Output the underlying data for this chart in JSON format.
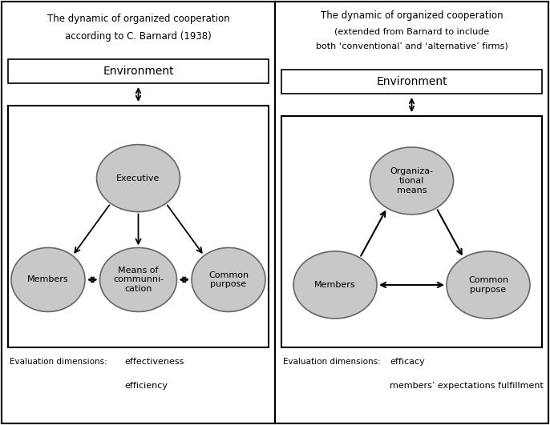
{
  "left_title_line1": "The dynamic of organized cooperation",
  "left_title_line2": "according to C. Barnard (1938)",
  "right_title_line1": "The dynamic of organized cooperation",
  "right_title_line2": "(extended from Barnard to include",
  "right_title_line3": "both ‘conventional’ and ‘alternative’ firms)",
  "env_label": "Environment",
  "means_label": "Means of\ncommunni-\ncation",
  "executive_label": "Executive",
  "members_label": "Members",
  "common_label": "Common\npurpose",
  "org_means_label": "Organiza-\ntional\nmeans",
  "left_eval_label": "Evaluation dimensions:",
  "left_eval_1": "effectiveness",
  "left_eval_2": "efficiency",
  "right_eval_label": "Evaluation dimensions:",
  "right_eval_1": "efficacy",
  "right_eval_2": "members’ expectations fulfillment",
  "circle_color": "#c8c8c8",
  "circle_edge_color": "#666666",
  "bg_color": "#ffffff",
  "title_fontsize": 8.5,
  "env_fontsize": 10,
  "circle_fontsize": 8,
  "eval_label_fontsize": 7.5,
  "eval_item_fontsize": 8
}
